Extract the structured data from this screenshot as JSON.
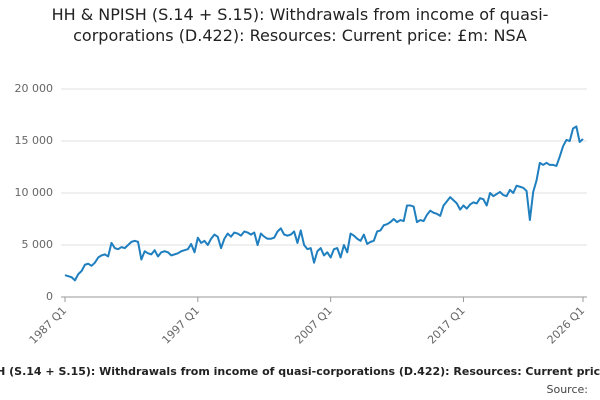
{
  "chart_data": {
    "type": "line",
    "title": "HH & NPISH (S.14 + S.15): Withdrawals from income of quasi-corporations (D.422): Resources: Current price: £m: NSA",
    "source": "Source:",
    "categories": [
      "1987 Q1",
      null,
      null,
      null,
      null,
      null,
      null,
      null,
      null,
      null,
      null,
      null,
      null,
      null,
      null,
      null,
      null,
      null,
      null,
      null,
      null,
      null,
      null,
      null,
      null,
      null,
      null,
      null,
      null,
      null,
      null,
      null,
      null,
      null,
      null,
      null,
      null,
      null,
      null,
      null,
      "1997 Q1",
      null,
      null,
      null,
      null,
      null,
      null,
      null,
      null,
      null,
      null,
      null,
      null,
      null,
      null,
      null,
      null,
      null,
      null,
      null,
      null,
      null,
      null,
      null,
      null,
      null,
      null,
      null,
      null,
      null,
      null,
      null,
      null,
      null,
      null,
      null,
      null,
      null,
      null,
      null,
      "2007 Q1",
      null,
      null,
      null,
      null,
      null,
      null,
      null,
      null,
      null,
      null,
      null,
      null,
      null,
      null,
      null,
      null,
      null,
      null,
      null,
      null,
      null,
      null,
      null,
      null,
      null,
      null,
      null,
      null,
      null,
      null,
      null,
      null,
      null,
      null,
      null,
      null,
      null,
      null,
      null,
      "2017 Q1",
      null,
      null,
      null,
      null,
      null,
      null,
      null,
      null,
      null,
      null,
      null,
      null,
      null,
      null,
      null,
      null,
      null,
      null,
      null,
      null,
      null,
      null,
      null,
      null,
      null,
      null,
      null,
      null,
      null,
      null,
      null,
      null,
      null,
      null,
      null,
      "2026 Q1"
    ],
    "series": [
      {
        "name": "HH & NPISH (S.14 + S.15): Withdrawals from income of quasi-corporations (D.422): Resources: Current price: £m: NSA",
        "color": "#1f7fbf",
        "values": [
          2100,
          2000,
          1900,
          1600,
          2200,
          2500,
          3100,
          3200,
          3000,
          3300,
          3800,
          4000,
          4100,
          3900,
          5200,
          4700,
          4600,
          4800,
          4700,
          5000,
          5300,
          5400,
          5300,
          3600,
          4400,
          4200,
          4100,
          4500,
          3900,
          4300,
          4400,
          4300,
          4000,
          4100,
          4200,
          4400,
          4500,
          4600,
          5100,
          4300,
          5700,
          5200,
          5400,
          5000,
          5600,
          6000,
          5800,
          4700,
          5600,
          6100,
          5800,
          6200,
          6100,
          5900,
          6300,
          6200,
          6000,
          6200,
          5000,
          6100,
          5800,
          5600,
          5600,
          5700,
          6300,
          6600,
          6000,
          5900,
          6000,
          6300,
          5200,
          6400,
          5000,
          4600,
          4700,
          3300,
          4400,
          4700,
          4000,
          4300,
          3800,
          4600,
          4700,
          3800,
          5000,
          4300,
          6100,
          5900,
          5600,
          5400,
          6000,
          5100,
          5300,
          5400,
          6300,
          6400,
          6900,
          7000,
          7200,
          7500,
          7200,
          7400,
          7300,
          8800,
          8800,
          8700,
          7200,
          7400,
          7300,
          7900,
          8300,
          8100,
          8000,
          7800,
          8800,
          9200,
          9600,
          9300,
          9000,
          8400,
          8800,
          8500,
          8900,
          9100,
          9000,
          9500,
          9400,
          8800,
          10000,
          9700,
          9900,
          10100,
          9800,
          9700,
          10300,
          10000,
          10700,
          10600,
          10500,
          10200,
          7400,
          10100,
          11200,
          12900,
          12700,
          12900,
          12700,
          12700,
          12600,
          13500,
          14500,
          15100,
          15000,
          16200,
          16400,
          14900,
          15200
        ]
      }
    ],
    "ylim": [
      0,
      20000
    ],
    "yticks": [
      0,
      {
        "value": 5000,
        "label": "5 000"
      },
      {
        "value": 10000,
        "label": "10 000"
      },
      {
        "value": 15000,
        "label": "15 000"
      },
      {
        "value": 20000,
        "label": "20 000"
      }
    ],
    "grid": true
  }
}
